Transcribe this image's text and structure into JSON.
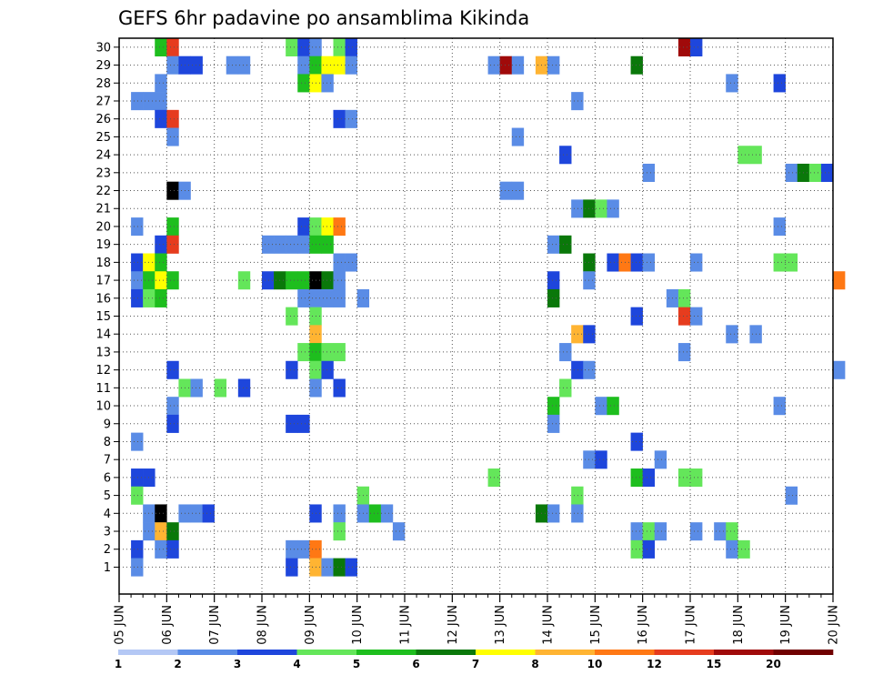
{
  "chart_data": {
    "type": "heatmap",
    "title": "GEFS 6hr padavine po ansamblima Kikinda",
    "xlabel": "",
    "ylabel": "",
    "x_tick_labels": [
      "05 JUN",
      "06 JUN",
      "07 JUN",
      "08 JUN",
      "09 JUN",
      "10 JUN",
      "11 JUN",
      "12 JUN",
      "13 JUN",
      "14 JUN",
      "15 JUN",
      "16 JUN",
      "17 JUN",
      "18 JUN",
      "19 JUN",
      "20 JUN"
    ],
    "y_tick_labels": [
      "1",
      "2",
      "3",
      "4",
      "5",
      "6",
      "7",
      "8",
      "9",
      "10",
      "11",
      "12",
      "13",
      "14",
      "15",
      "16",
      "17",
      "18",
      "19",
      "20",
      "21",
      "22",
      "23",
      "24",
      "25",
      "26",
      "27",
      "28",
      "29",
      "30"
    ],
    "y_range": [
      0,
      30
    ],
    "x_range_days": [
      0,
      15
    ],
    "time_step_hours": 6,
    "grid": "dotted",
    "colorbar": {
      "placement": "bottom",
      "tick_labels": [
        "1",
        "2",
        "3",
        "4",
        "5",
        "6",
        "7",
        "8",
        "10",
        "12",
        "15",
        "20"
      ],
      "colors": [
        "#b4c8f5",
        "#5a8ce6",
        "#1e46dc",
        "#64e65a",
        "#1ebe1e",
        "#0a780a",
        "#ffff00",
        "#ffb432",
        "#ff7814",
        "#e63c1e",
        "#a00a0a",
        "#700000"
      ]
    },
    "cells": [
      [
        0.75,
        30,
        4
      ],
      [
        1.0,
        30,
        9
      ],
      [
        3.5,
        30,
        3
      ],
      [
        3.75,
        30,
        2
      ],
      [
        4.0,
        30,
        1
      ],
      [
        4.5,
        30,
        3
      ],
      [
        4.75,
        30,
        2
      ],
      [
        11.75,
        30,
        10
      ],
      [
        12.0,
        30,
        2
      ],
      [
        1.0,
        29,
        1
      ],
      [
        1.25,
        29,
        2
      ],
      [
        1.5,
        29,
        2
      ],
      [
        2.25,
        29,
        1
      ],
      [
        2.5,
        29,
        1
      ],
      [
        3.75,
        29,
        1
      ],
      [
        4.0,
        29,
        4
      ],
      [
        4.25,
        29,
        6
      ],
      [
        4.5,
        29,
        6
      ],
      [
        4.75,
        29,
        1
      ],
      [
        7.75,
        29,
        1
      ],
      [
        8.0,
        29,
        10
      ],
      [
        8.25,
        29,
        1
      ],
      [
        8.75,
        29,
        7
      ],
      [
        9.0,
        29,
        1
      ],
      [
        10.75,
        29,
        5
      ],
      [
        0.75,
        28,
        1
      ],
      [
        3.75,
        28,
        4
      ],
      [
        4.0,
        28,
        6
      ],
      [
        4.25,
        28,
        1
      ],
      [
        12.75,
        28,
        1
      ],
      [
        13.75,
        28,
        2
      ],
      [
        0.25,
        27,
        1
      ],
      [
        0.5,
        27,
        1
      ],
      [
        0.75,
        27,
        1
      ],
      [
        9.5,
        27,
        1
      ],
      [
        0.75,
        26,
        2
      ],
      [
        1.0,
        26,
        9
      ],
      [
        4.5,
        26,
        2
      ],
      [
        4.75,
        26,
        1
      ],
      [
        1.0,
        25,
        1
      ],
      [
        8.25,
        25,
        1
      ],
      [
        9.25,
        24,
        2
      ],
      [
        13.0,
        24,
        3
      ],
      [
        13.25,
        24,
        3
      ],
      [
        11.0,
        23,
        1
      ],
      [
        14.0,
        23,
        1
      ],
      [
        14.25,
        23,
        5
      ],
      [
        14.5,
        23,
        3
      ],
      [
        14.75,
        23,
        2
      ],
      [
        1.0,
        22,
        12
      ],
      [
        1.25,
        22,
        1
      ],
      [
        8.0,
        22,
        1
      ],
      [
        8.25,
        22,
        1
      ],
      [
        9.5,
        21,
        1
      ],
      [
        9.75,
        21,
        5
      ],
      [
        10.0,
        21,
        3
      ],
      [
        10.25,
        21,
        1
      ],
      [
        0.25,
        20,
        1
      ],
      [
        1.0,
        20,
        4
      ],
      [
        3.75,
        20,
        2
      ],
      [
        4.0,
        20,
        3
      ],
      [
        4.25,
        20,
        6
      ],
      [
        4.5,
        20,
        8
      ],
      [
        13.75,
        20,
        1
      ],
      [
        0.75,
        19,
        2
      ],
      [
        1.0,
        19,
        9
      ],
      [
        3.0,
        19,
        1
      ],
      [
        3.25,
        19,
        1
      ],
      [
        3.5,
        19,
        1
      ],
      [
        3.75,
        19,
        1
      ],
      [
        4.0,
        19,
        4
      ],
      [
        4.25,
        19,
        4
      ],
      [
        9.0,
        19,
        1
      ],
      [
        9.25,
        19,
        5
      ],
      [
        0.25,
        18,
        2
      ],
      [
        0.5,
        18,
        6
      ],
      [
        0.75,
        18,
        4
      ],
      [
        4.5,
        18,
        1
      ],
      [
        4.75,
        18,
        1
      ],
      [
        9.75,
        18,
        5
      ],
      [
        10.25,
        18,
        2
      ],
      [
        10.5,
        18,
        8
      ],
      [
        10.75,
        18,
        2
      ],
      [
        11.0,
        18,
        1
      ],
      [
        12.0,
        18,
        1
      ],
      [
        13.75,
        18,
        3
      ],
      [
        14.0,
        18,
        3
      ],
      [
        0.25,
        17,
        1
      ],
      [
        0.5,
        17,
        4
      ],
      [
        0.75,
        17,
        6
      ],
      [
        1.0,
        17,
        4
      ],
      [
        2.5,
        17,
        3
      ],
      [
        3.0,
        17,
        2
      ],
      [
        3.25,
        17,
        5
      ],
      [
        3.5,
        17,
        4
      ],
      [
        3.75,
        17,
        4
      ],
      [
        4.0,
        17,
        12
      ],
      [
        4.25,
        17,
        5
      ],
      [
        4.5,
        17,
        1
      ],
      [
        9.0,
        17,
        2
      ],
      [
        9.75,
        17,
        1
      ],
      [
        15.0,
        17,
        8
      ],
      [
        0.25,
        16,
        2
      ],
      [
        0.5,
        16,
        3
      ],
      [
        0.75,
        16,
        4
      ],
      [
        3.75,
        16,
        1
      ],
      [
        4.0,
        16,
        1
      ],
      [
        4.25,
        16,
        1
      ],
      [
        4.5,
        16,
        1
      ],
      [
        5.0,
        16,
        1
      ],
      [
        9.0,
        16,
        5
      ],
      [
        11.5,
        16,
        1
      ],
      [
        11.75,
        16,
        3
      ],
      [
        3.5,
        15,
        3
      ],
      [
        4.0,
        15,
        3
      ],
      [
        10.75,
        15,
        2
      ],
      [
        11.75,
        15,
        9
      ],
      [
        12.0,
        15,
        1
      ],
      [
        4.0,
        14,
        7
      ],
      [
        9.5,
        14,
        7
      ],
      [
        9.75,
        14,
        2
      ],
      [
        12.75,
        14,
        1
      ],
      [
        13.25,
        14,
        1
      ],
      [
        3.75,
        13,
        3
      ],
      [
        4.0,
        13,
        4
      ],
      [
        4.25,
        13,
        3
      ],
      [
        4.5,
        13,
        3
      ],
      [
        9.25,
        13,
        1
      ],
      [
        11.75,
        13,
        1
      ],
      [
        1.0,
        12,
        2
      ],
      [
        3.5,
        12,
        2
      ],
      [
        4.0,
        12,
        3
      ],
      [
        4.25,
        12,
        2
      ],
      [
        9.5,
        12,
        2
      ],
      [
        9.75,
        12,
        1
      ],
      [
        15.0,
        12,
        1
      ],
      [
        1.25,
        11,
        3
      ],
      [
        1.5,
        11,
        1
      ],
      [
        2.0,
        11,
        3
      ],
      [
        2.5,
        11,
        2
      ],
      [
        4.0,
        11,
        1
      ],
      [
        4.5,
        11,
        2
      ],
      [
        9.25,
        11,
        3
      ],
      [
        1.0,
        10,
        1
      ],
      [
        9.0,
        10,
        4
      ],
      [
        10.0,
        10,
        1
      ],
      [
        10.25,
        10,
        4
      ],
      [
        13.75,
        10,
        1
      ],
      [
        1.0,
        9,
        2
      ],
      [
        3.5,
        9,
        2
      ],
      [
        3.75,
        9,
        2
      ],
      [
        9.0,
        9,
        1
      ],
      [
        0.25,
        8,
        1
      ],
      [
        10.75,
        8,
        2
      ],
      [
        9.75,
        7,
        1
      ],
      [
        10.0,
        7,
        2
      ],
      [
        11.25,
        7,
        1
      ],
      [
        0.25,
        6,
        2
      ],
      [
        0.5,
        6,
        2
      ],
      [
        7.75,
        6,
        3
      ],
      [
        10.75,
        6,
        4
      ],
      [
        11.0,
        6,
        2
      ],
      [
        11.75,
        6,
        3
      ],
      [
        12.0,
        6,
        3
      ],
      [
        0.25,
        5,
        3
      ],
      [
        5.0,
        5,
        3
      ],
      [
        9.5,
        5,
        3
      ],
      [
        14.0,
        5,
        1
      ],
      [
        4.0,
        4,
        2
      ],
      [
        4.5,
        4,
        1
      ],
      [
        5.0,
        4,
        1
      ],
      [
        5.25,
        4,
        4
      ],
      [
        5.5,
        4,
        1
      ],
      [
        8.75,
        4,
        5
      ],
      [
        9.0,
        4,
        1
      ],
      [
        9.5,
        4,
        1
      ],
      [
        0.5,
        4,
        1
      ],
      [
        1.25,
        4,
        1
      ],
      [
        1.5,
        4,
        1
      ],
      [
        1.75,
        4,
        2
      ],
      [
        0.75,
        4,
        12
      ],
      [
        0.5,
        3,
        1
      ],
      [
        0.75,
        3,
        7
      ],
      [
        1.0,
        3,
        5
      ],
      [
        4.5,
        3,
        3
      ],
      [
        5.75,
        3,
        1
      ],
      [
        10.75,
        3,
        1
      ],
      [
        11.0,
        3,
        3
      ],
      [
        11.25,
        3,
        1
      ],
      [
        12.0,
        3,
        1
      ],
      [
        12.5,
        3,
        1
      ],
      [
        12.75,
        3,
        3
      ],
      [
        0.25,
        2,
        2
      ],
      [
        0.75,
        2,
        1
      ],
      [
        1.0,
        2,
        2
      ],
      [
        3.5,
        2,
        1
      ],
      [
        3.75,
        2,
        1
      ],
      [
        4.0,
        2,
        8
      ],
      [
        10.75,
        2,
        3
      ],
      [
        11.0,
        2,
        2
      ],
      [
        12.75,
        2,
        1
      ],
      [
        13.0,
        2,
        3
      ],
      [
        0.25,
        1,
        1
      ],
      [
        3.5,
        1,
        2
      ],
      [
        4.0,
        1,
        7
      ],
      [
        4.25,
        1,
        1
      ],
      [
        4.5,
        1,
        5
      ],
      [
        4.75,
        1,
        2
      ]
    ]
  }
}
